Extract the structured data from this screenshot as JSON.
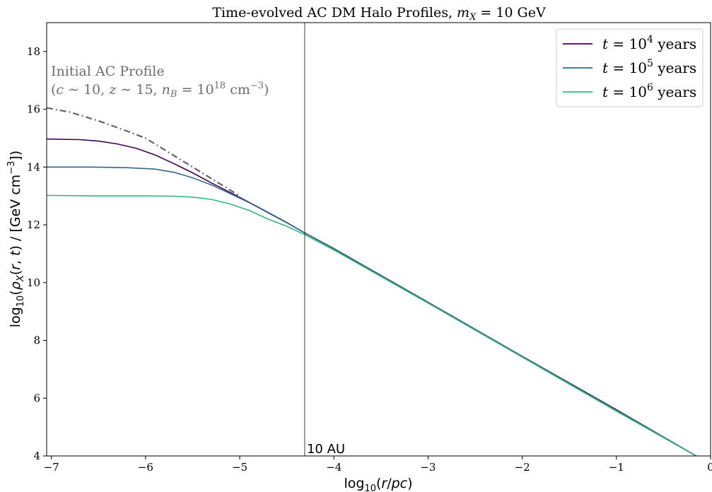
{
  "chart_data": {
    "type": "line",
    "title": "Time-evolved AC DM Halo Profiles, m_X = 10 GeV",
    "title_parts": {
      "prefix": "Time-evolved AC DM Halo Profiles, ",
      "var": "m",
      "sub": "X",
      "suffix": " = 10 GeV"
    },
    "xlabel": "log10(r/pc)",
    "ylabel": "log10(ρX(r, t) / [GeV cm−3])",
    "xlim": [
      -7.05,
      0
    ],
    "ylim": [
      4,
      19
    ],
    "x_ticks": [
      -7,
      -6,
      -5,
      -4,
      -3,
      -2,
      -1,
      0
    ],
    "x_tick_labels": [
      "−7",
      "−6",
      "−5",
      "−4",
      "−3",
      "−2",
      "−1",
      "0"
    ],
    "y_ticks": [
      4,
      6,
      8,
      10,
      12,
      14,
      16,
      18
    ],
    "y_tick_labels": [
      "4",
      "6",
      "8",
      "10",
      "12",
      "14",
      "16",
      "18"
    ],
    "grid": false,
    "legend_position": "top-right",
    "vertical_line": {
      "x": -4.31,
      "label": "10 AU"
    },
    "annotation": {
      "line1": "Initial AC Profile",
      "line2": "(c ~ 10, z ~ 15, n_B = 10^18 cm^−3)"
    },
    "initial_profile": {
      "name": "Initial AC Profile",
      "style": "dash-dot",
      "color": "#666666",
      "x": [
        -7.05,
        -6.8,
        -6.5,
        -6.2,
        -6.0,
        -5.8,
        -5.6,
        -5.4,
        -5.2,
        -5.0
      ],
      "y": [
        16.05,
        15.9,
        15.6,
        15.25,
        15.0,
        14.6,
        14.2,
        13.8,
        13.4,
        13.0
      ]
    },
    "series": [
      {
        "name": "t = 10^4 years",
        "legend_prefix": "t = 10",
        "legend_exp": "4",
        "legend_suffix": " years",
        "color": "#440154",
        "x": [
          -7.05,
          -6.7,
          -6.5,
          -6.3,
          -6.1,
          -5.9,
          -5.7,
          -5.5,
          -5.3,
          -5.1,
          -4.9,
          -4.7,
          -4.5,
          -4.31,
          -4.0,
          -3.0,
          -2.0,
          -1.0,
          -0.1
        ],
        "y": [
          14.97,
          14.95,
          14.9,
          14.8,
          14.65,
          14.42,
          14.12,
          13.8,
          13.45,
          13.12,
          12.78,
          12.43,
          12.08,
          11.72,
          11.18,
          9.32,
          7.45,
          5.6,
          3.9
        ]
      },
      {
        "name": "t = 10^5 years",
        "legend_prefix": "t = 10",
        "legend_exp": "5",
        "legend_suffix": " years",
        "color": "#31688e",
        "x": [
          -7.05,
          -6.6,
          -6.2,
          -5.9,
          -5.7,
          -5.5,
          -5.3,
          -5.1,
          -4.9,
          -4.7,
          -4.5,
          -4.31,
          -4.0,
          -3.0,
          -2.0,
          -1.0,
          -0.1
        ],
        "y": [
          14.0,
          14.0,
          13.98,
          13.93,
          13.82,
          13.63,
          13.38,
          13.08,
          12.77,
          12.42,
          12.07,
          11.72,
          11.17,
          9.31,
          7.44,
          5.58,
          3.9
        ]
      },
      {
        "name": "t = 10^6 years",
        "legend_prefix": "t = 10",
        "legend_exp": "6",
        "legend_suffix": " years",
        "color": "#35b779",
        "x": [
          -7.05,
          -6.5,
          -6.0,
          -5.7,
          -5.5,
          -5.3,
          -5.1,
          -4.9,
          -4.7,
          -4.5,
          -4.31,
          -4.0,
          -3.0,
          -2.0,
          -1.0,
          -0.1
        ],
        "y": [
          13.02,
          13.0,
          13.0,
          12.99,
          12.96,
          12.88,
          12.72,
          12.5,
          12.2,
          11.95,
          11.66,
          11.13,
          9.29,
          7.42,
          5.55,
          3.9
        ]
      }
    ]
  }
}
